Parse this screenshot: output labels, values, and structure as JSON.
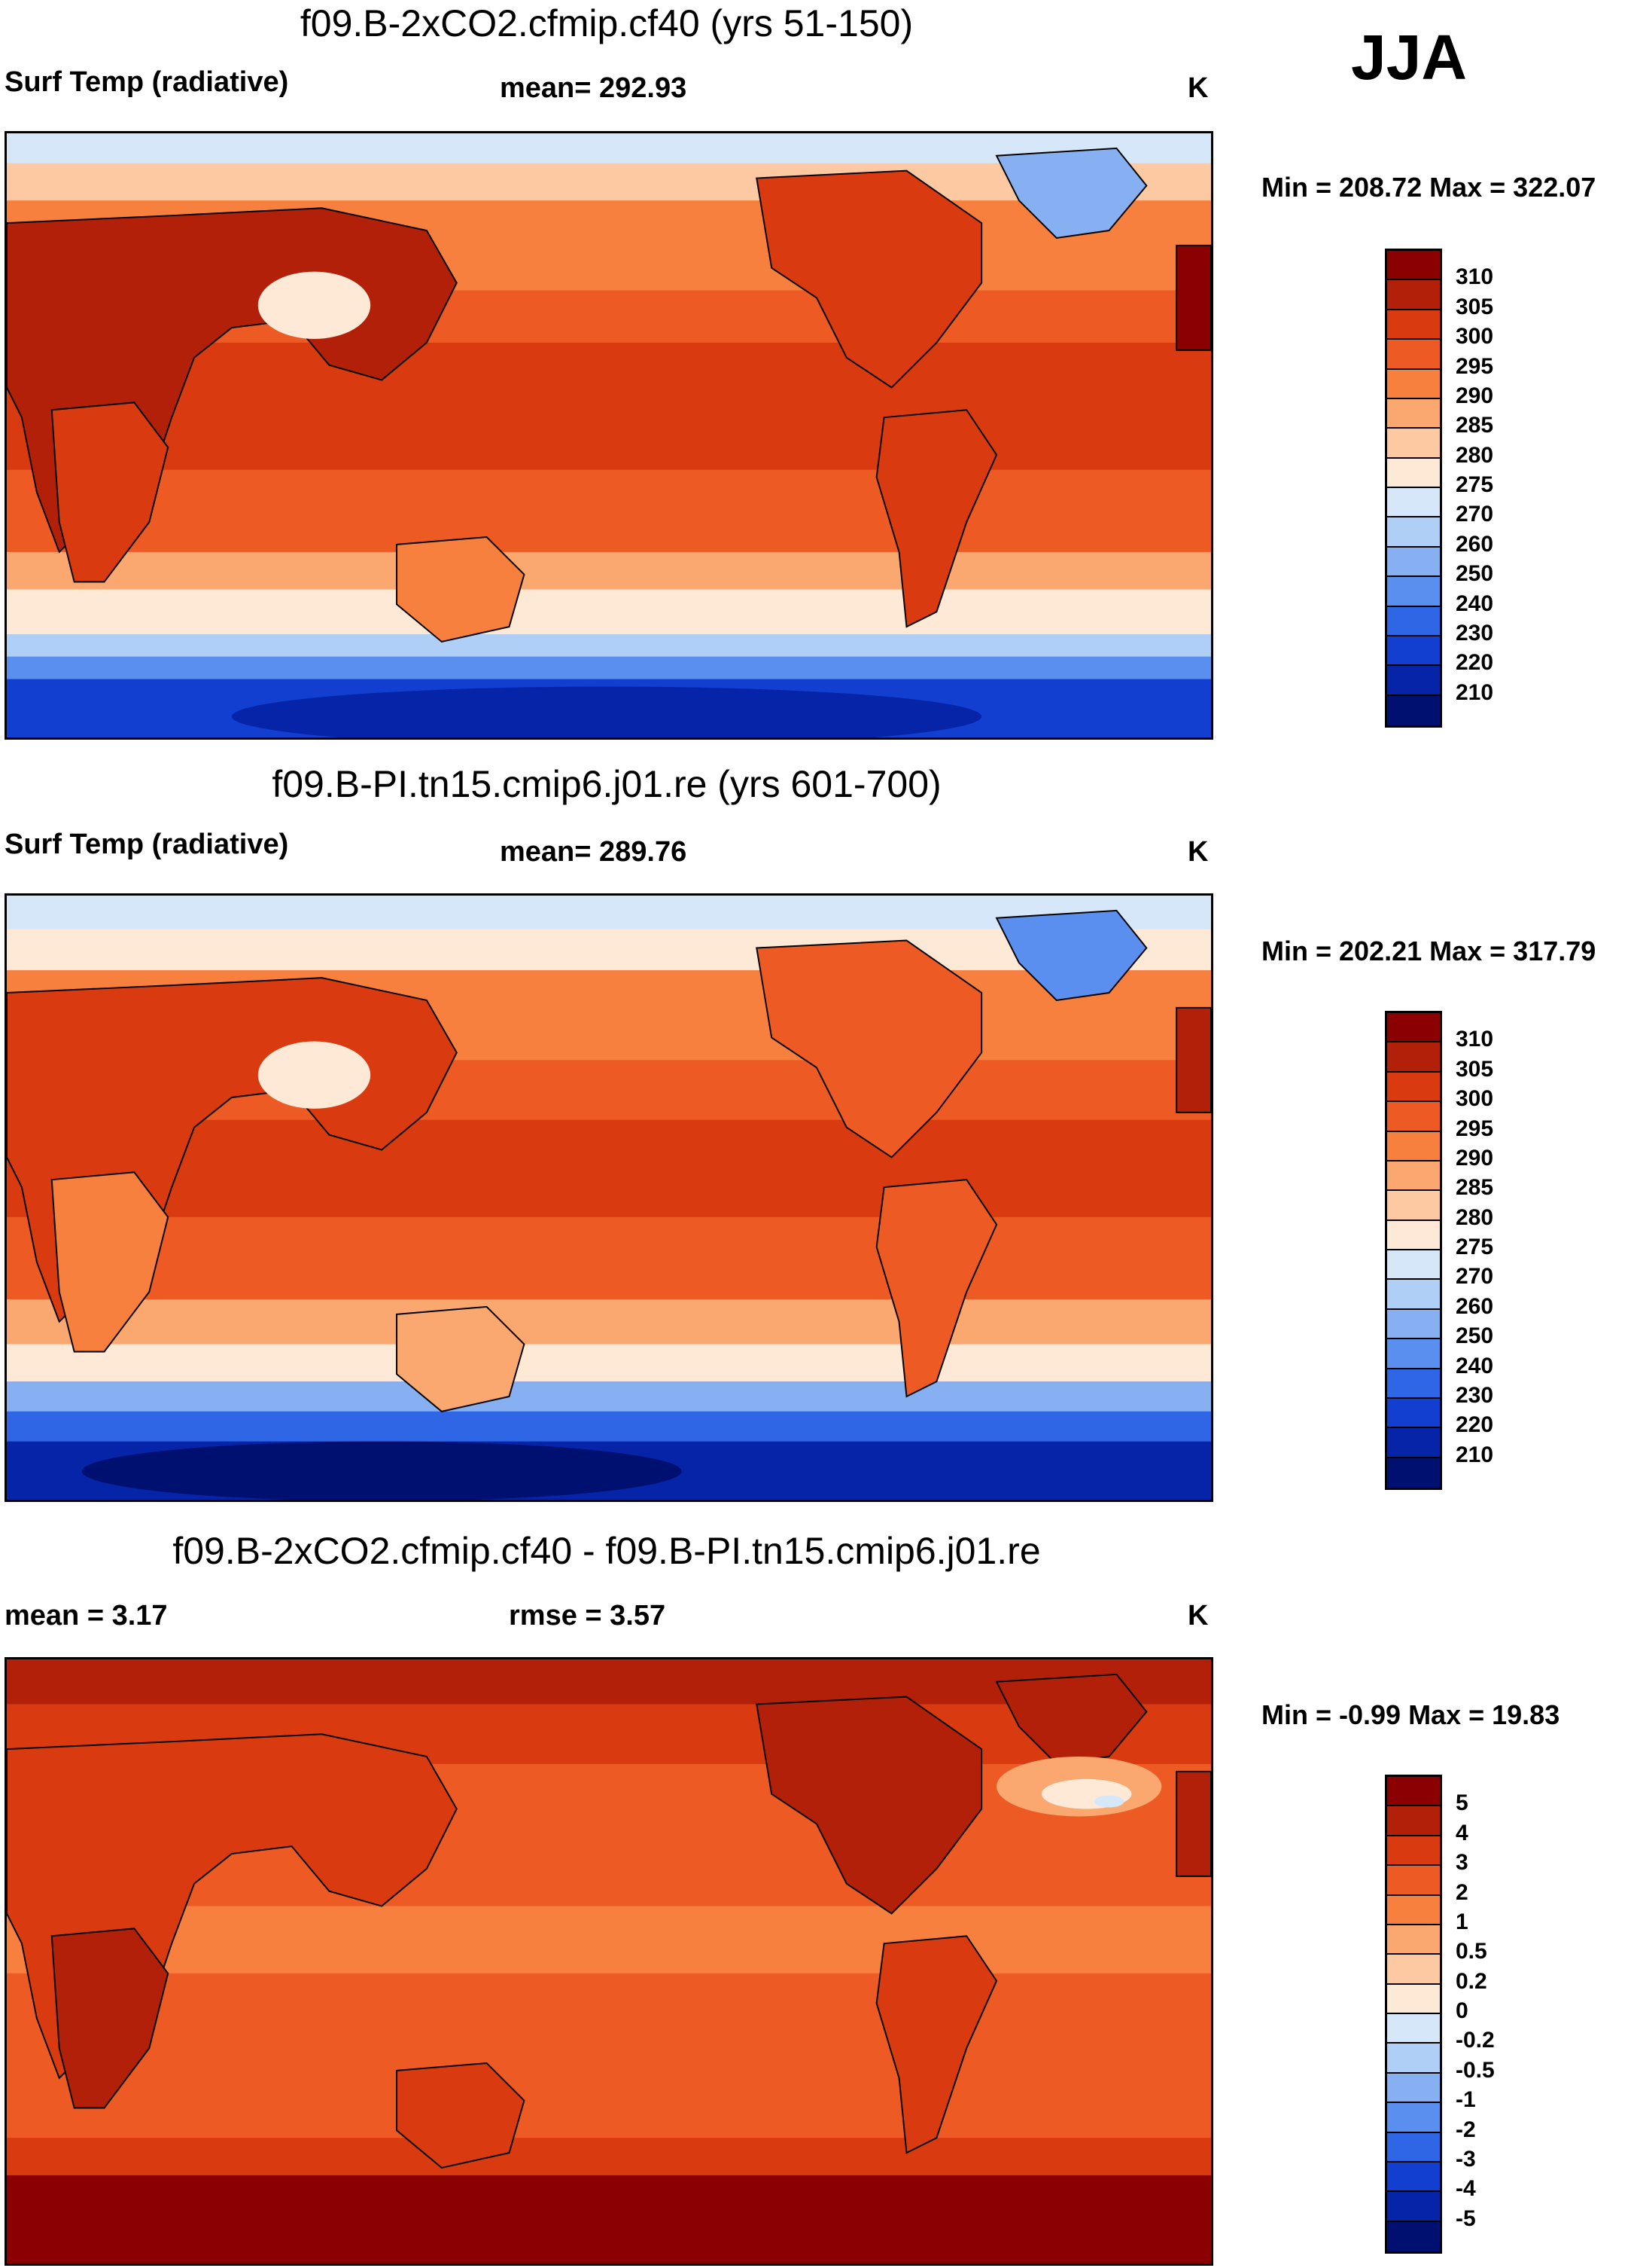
{
  "season": "JJA",
  "chart_data": [
    {
      "type": "heatmap",
      "title": "f09.B-2xCO2.cfmip.cf40 (yrs 51-150)",
      "variable": "Surf Temp (radiative)",
      "mean_label": "mean= 292.93",
      "units": "K",
      "min": 208.72,
      "max": 322.07,
      "minmax_label": "Min = 208.72 Max = 322.07",
      "colorbar": {
        "levels": [
          "310",
          "305",
          "300",
          "295",
          "290",
          "285",
          "280",
          "275",
          "270",
          "260",
          "250",
          "240",
          "230",
          "220",
          "210"
        ],
        "colors": [
          "#8b0000",
          "#b3200a",
          "#d93a10",
          "#ee5a24",
          "#f7803e",
          "#fba870",
          "#fdc9a3",
          "#fee8d6",
          "#d6e7fa",
          "#b0cff7",
          "#86b0f2",
          "#5a8ff0",
          "#2e66e6",
          "#123fd0",
          "#0624a8",
          "#001070"
        ]
      }
    },
    {
      "type": "heatmap",
      "title": "f09.B-PI.tn15.cmip6.j01.re (yrs 601-700)",
      "variable": "Surf Temp (radiative)",
      "mean_label": "mean= 289.76",
      "units": "K",
      "min": 202.21,
      "max": 317.79,
      "minmax_label": "Min = 202.21 Max = 317.79",
      "colorbar": {
        "levels": [
          "310",
          "305",
          "300",
          "295",
          "290",
          "285",
          "280",
          "275",
          "270",
          "260",
          "250",
          "240",
          "230",
          "220",
          "210"
        ],
        "colors": [
          "#8b0000",
          "#b3200a",
          "#d93a10",
          "#ee5a24",
          "#f7803e",
          "#fba870",
          "#fdc9a3",
          "#fee8d6",
          "#d6e7fa",
          "#b0cff7",
          "#86b0f2",
          "#5a8ff0",
          "#2e66e6",
          "#123fd0",
          "#0624a8",
          "#001070"
        ]
      }
    },
    {
      "type": "heatmap",
      "title": "f09.B-2xCO2.cfmip.cf40 - f09.B-PI.tn15.cmip6.j01.re",
      "mean_label": "mean =   3.17",
      "rmse_label": "rmse =   3.57",
      "units": "K",
      "min": -0.99,
      "max": 19.83,
      "minmax_label": "Min =  -0.99 Max =  19.83",
      "colorbar": {
        "levels": [
          "5",
          "4",
          "3",
          "2",
          "1",
          "0.5",
          "0.2",
          "0",
          "-0.2",
          "-0.5",
          "-1",
          "-2",
          "-3",
          "-4",
          "-5"
        ],
        "colors": [
          "#8b0000",
          "#b3200a",
          "#d93a10",
          "#ee5a24",
          "#f7803e",
          "#fba870",
          "#fdc9a3",
          "#fee8d6",
          "#d6e7fa",
          "#b0cff7",
          "#86b0f2",
          "#5a8ff0",
          "#2e66e6",
          "#123fd0",
          "#0624a8",
          "#001070"
        ]
      }
    }
  ]
}
